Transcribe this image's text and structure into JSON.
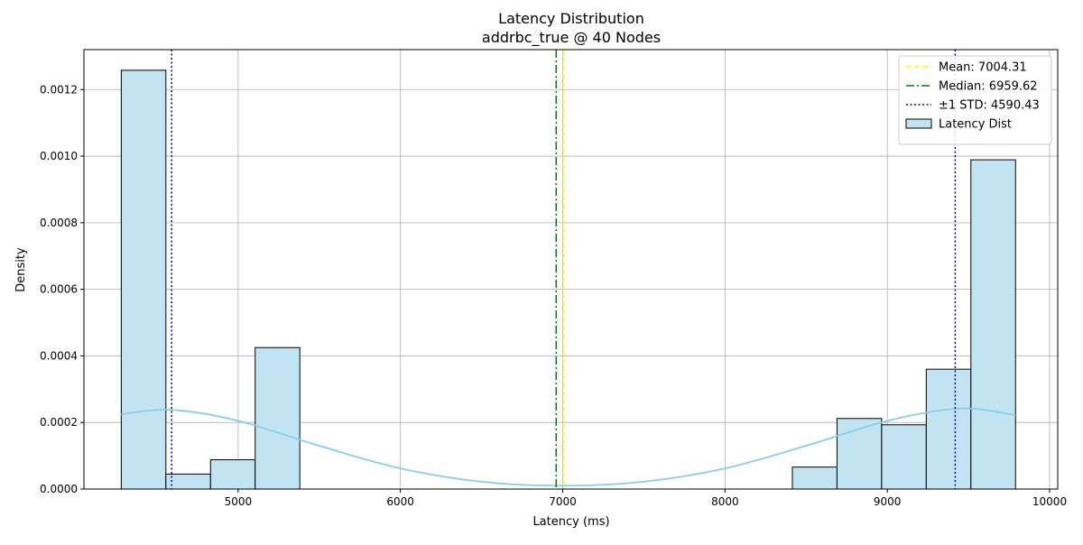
{
  "chart_data": {
    "type": "histogram",
    "title": "Latency Distribution",
    "subtitle": "addrbc_true @ 40 Nodes",
    "xlabel": "Latency (ms)",
    "ylabel": "Density",
    "xlim": [
      4050,
      10050
    ],
    "ylim": [
      0,
      0.00132
    ],
    "x_ticks": [
      5000,
      6000,
      7000,
      8000,
      9000,
      10000
    ],
    "y_ticks": [
      0.0,
      0.0002,
      0.0004,
      0.0006,
      0.0008,
      0.001,
      0.0012
    ],
    "x_tick_labels": [
      "5000",
      "6000",
      "7000",
      "8000",
      "9000",
      "10000"
    ],
    "y_tick_labels": [
      "0.0000",
      "0.0002",
      "0.0004",
      "0.0006",
      "0.0008",
      "0.0010",
      "0.0012"
    ],
    "grid": true,
    "legend_position": "top-right",
    "bins": [
      {
        "start": 4280,
        "end": 4555,
        "density": 0.001258
      },
      {
        "start": 4555,
        "end": 4830,
        "density": 4.5e-05
      },
      {
        "start": 4830,
        "end": 5105,
        "density": 8.8e-05
      },
      {
        "start": 5105,
        "end": 5380,
        "density": 0.000425
      },
      {
        "start": 8415,
        "end": 8690,
        "density": 6.6e-05
      },
      {
        "start": 8690,
        "end": 8965,
        "density": 0.000212
      },
      {
        "start": 8965,
        "end": 9240,
        "density": 0.000193
      },
      {
        "start": 9240,
        "end": 9515,
        "density": 0.00036
      },
      {
        "start": 9515,
        "end": 9790,
        "density": 0.000989
      }
    ],
    "kde": {
      "x": [
        4280,
        4590,
        5000,
        5500,
        6000,
        6500,
        7000,
        7500,
        8000,
        8500,
        9000,
        9450,
        9790
      ],
      "y": [
        0.000225,
        0.000238,
        0.000205,
        0.00013,
        6.2e-05,
        2.2e-05,
        1e-05,
        2.2e-05,
        6.2e-05,
        0.00013,
        0.000205,
        0.000242,
        0.000222
      ]
    },
    "mean": 7004.31,
    "median": 6959.62,
    "std_lines": [
      4590.43,
      9418.19
    ],
    "legend": [
      {
        "label": "Mean: 7004.31",
        "style": "dashed",
        "color": "#ffff00"
      },
      {
        "label": "Median: 6959.62",
        "style": "dashdot",
        "color": "#008000"
      },
      {
        "label": "±1 STD: 4590.43",
        "style": "dotted",
        "color": "#0000cc"
      },
      {
        "label": "Latency Dist",
        "style": "patch",
        "color": "#c2e4f2"
      }
    ],
    "colors": {
      "bar_fill": "#c2e4f2",
      "bar_edge": "#000000",
      "kde": "#87ceeb",
      "mean": "#ffff00",
      "median": "#008000",
      "std": "#0000cc",
      "grid": "#b0b0b0"
    }
  }
}
